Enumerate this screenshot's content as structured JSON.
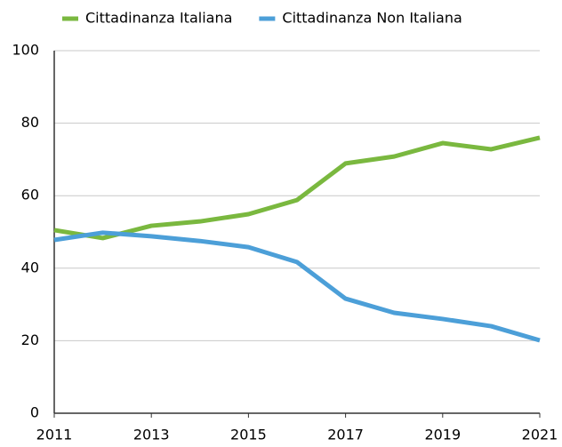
{
  "chart_data": {
    "type": "line",
    "x": [
      2011,
      2012,
      2013,
      2014,
      2015,
      2016,
      2017,
      2018,
      2019,
      2020,
      2021
    ],
    "series": [
      {
        "name": "Cittadinanza Italiana",
        "color": "#7ab83f",
        "values": [
          50.5,
          48.3,
          51.7,
          52.9,
          54.9,
          58.8,
          68.9,
          70.8,
          74.5,
          72.8,
          76
        ]
      },
      {
        "name": "Cittadinanza Non Italiana",
        "color": "#4c9fd8",
        "values": [
          47.8,
          49.8,
          48.8,
          47.5,
          45.8,
          41.7,
          31.6,
          27.7,
          26,
          24,
          20.1
        ]
      }
    ],
    "xlim": [
      2011,
      2021
    ],
    "xticks": [
      2011,
      2013,
      2015,
      2017,
      2019,
      2021
    ],
    "ylim": [
      0,
      100
    ],
    "yticks": [
      0,
      20,
      40,
      60,
      80,
      100
    ],
    "grid": true,
    "legend": "top"
  }
}
